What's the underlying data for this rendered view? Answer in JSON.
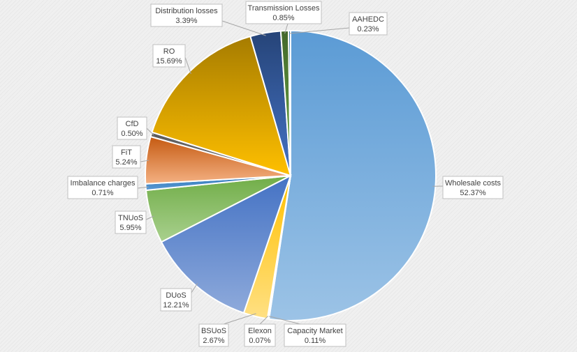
{
  "chart_data": {
    "type": "pie",
    "start": "top",
    "direction": "clockwise",
    "slices": [
      {
        "name": "Wholesale costs",
        "value": 52.37,
        "label": "52.37%",
        "color_top": "#5b9bd5",
        "color_bottom": "#9cc3e6"
      },
      {
        "name": "Capacity Market",
        "value": 0.11,
        "label": "0.11%",
        "color_top": "#ffc000",
        "color_bottom": "#ffd966"
      },
      {
        "name": "Elexon",
        "value": 0.07,
        "label": "0.07%",
        "color_top": "#a5a5a5",
        "color_bottom": "#c9c9c9"
      },
      {
        "name": "BSUoS",
        "value": 2.67,
        "label": "2.67%",
        "color_top": "#ffc000",
        "color_bottom": "#ffe083"
      },
      {
        "name": "DUoS",
        "value": 12.21,
        "label": "12.21%",
        "color_top": "#4472c4",
        "color_bottom": "#8eaadb"
      },
      {
        "name": "TNUoS",
        "value": 5.95,
        "label": "5.95%",
        "color_top": "#70ad47",
        "color_bottom": "#a9d08e"
      },
      {
        "name": "Imbalance charges",
        "value": 0.71,
        "label": "0.71%",
        "color_top": "#2e75b6",
        "color_bottom": "#5b9bd5"
      },
      {
        "name": "FiT",
        "value": 5.24,
        "label": "5.24%",
        "color_top": "#c55a11",
        "color_bottom": "#f4b183"
      },
      {
        "name": "CfD",
        "value": 0.5,
        "label": "0.50%",
        "color_top": "#595959",
        "color_bottom": "#7f7f7f"
      },
      {
        "name": "RO",
        "value": 15.69,
        "label": "15.69%",
        "color_top": "#a67c00",
        "color_bottom": "#ffc000"
      },
      {
        "name": "Distribution losses",
        "value": 3.39,
        "label": "3.39%",
        "color_top": "#264478",
        "color_bottom": "#4472c4"
      },
      {
        "name": "Transmission Losses",
        "value": 0.85,
        "label": "0.85%",
        "color_top": "#43682b",
        "color_bottom": "#70ad47"
      },
      {
        "name": "AAHEDC",
        "value": 0.23,
        "label": "0.23%",
        "color_top": "#2f6f9f",
        "color_bottom": "#5b9bd5"
      }
    ]
  }
}
